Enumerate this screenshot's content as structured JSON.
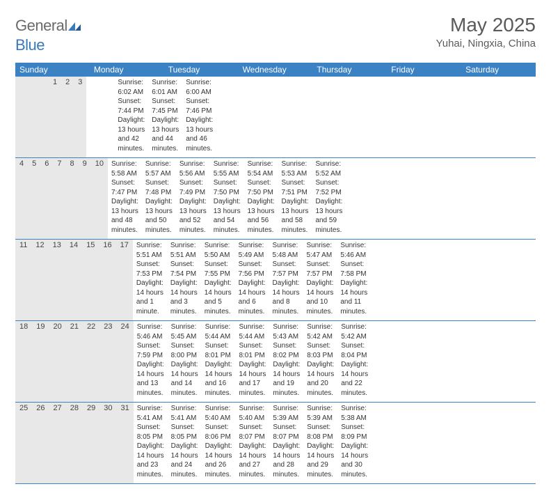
{
  "logo": {
    "general": "General",
    "blue": "Blue"
  },
  "title": "May 2025",
  "location": "Yuhai, Ningxia, China",
  "colors": {
    "header_bg": "#3b82c4",
    "header_text": "#ffffff",
    "daynum_bg": "#e8e8e8",
    "border": "#3b82c4",
    "body_text": "#333333",
    "logo_gray": "#6a6a6a",
    "logo_blue": "#3a7ab8"
  },
  "day_labels": [
    "Sunday",
    "Monday",
    "Tuesday",
    "Wednesday",
    "Thursday",
    "Friday",
    "Saturday"
  ],
  "weeks": [
    [
      {
        "n": "",
        "sr": "",
        "ss": "",
        "dl": ""
      },
      {
        "n": "",
        "sr": "",
        "ss": "",
        "dl": ""
      },
      {
        "n": "",
        "sr": "",
        "ss": "",
        "dl": ""
      },
      {
        "n": "",
        "sr": "",
        "ss": "",
        "dl": ""
      },
      {
        "n": "1",
        "sr": "Sunrise: 6:02 AM",
        "ss": "Sunset: 7:44 PM",
        "dl": "Daylight: 13 hours and 42 minutes."
      },
      {
        "n": "2",
        "sr": "Sunrise: 6:01 AM",
        "ss": "Sunset: 7:45 PM",
        "dl": "Daylight: 13 hours and 44 minutes."
      },
      {
        "n": "3",
        "sr": "Sunrise: 6:00 AM",
        "ss": "Sunset: 7:46 PM",
        "dl": "Daylight: 13 hours and 46 minutes."
      }
    ],
    [
      {
        "n": "4",
        "sr": "Sunrise: 5:58 AM",
        "ss": "Sunset: 7:47 PM",
        "dl": "Daylight: 13 hours and 48 minutes."
      },
      {
        "n": "5",
        "sr": "Sunrise: 5:57 AM",
        "ss": "Sunset: 7:48 PM",
        "dl": "Daylight: 13 hours and 50 minutes."
      },
      {
        "n": "6",
        "sr": "Sunrise: 5:56 AM",
        "ss": "Sunset: 7:49 PM",
        "dl": "Daylight: 13 hours and 52 minutes."
      },
      {
        "n": "7",
        "sr": "Sunrise: 5:55 AM",
        "ss": "Sunset: 7:50 PM",
        "dl": "Daylight: 13 hours and 54 minutes."
      },
      {
        "n": "8",
        "sr": "Sunrise: 5:54 AM",
        "ss": "Sunset: 7:50 PM",
        "dl": "Daylight: 13 hours and 56 minutes."
      },
      {
        "n": "9",
        "sr": "Sunrise: 5:53 AM",
        "ss": "Sunset: 7:51 PM",
        "dl": "Daylight: 13 hours and 58 minutes."
      },
      {
        "n": "10",
        "sr": "Sunrise: 5:52 AM",
        "ss": "Sunset: 7:52 PM",
        "dl": "Daylight: 13 hours and 59 minutes."
      }
    ],
    [
      {
        "n": "11",
        "sr": "Sunrise: 5:51 AM",
        "ss": "Sunset: 7:53 PM",
        "dl": "Daylight: 14 hours and 1 minute."
      },
      {
        "n": "12",
        "sr": "Sunrise: 5:51 AM",
        "ss": "Sunset: 7:54 PM",
        "dl": "Daylight: 14 hours and 3 minutes."
      },
      {
        "n": "13",
        "sr": "Sunrise: 5:50 AM",
        "ss": "Sunset: 7:55 PM",
        "dl": "Daylight: 14 hours and 5 minutes."
      },
      {
        "n": "14",
        "sr": "Sunrise: 5:49 AM",
        "ss": "Sunset: 7:56 PM",
        "dl": "Daylight: 14 hours and 6 minutes."
      },
      {
        "n": "15",
        "sr": "Sunrise: 5:48 AM",
        "ss": "Sunset: 7:57 PM",
        "dl": "Daylight: 14 hours and 8 minutes."
      },
      {
        "n": "16",
        "sr": "Sunrise: 5:47 AM",
        "ss": "Sunset: 7:57 PM",
        "dl": "Daylight: 14 hours and 10 minutes."
      },
      {
        "n": "17",
        "sr": "Sunrise: 5:46 AM",
        "ss": "Sunset: 7:58 PM",
        "dl": "Daylight: 14 hours and 11 minutes."
      }
    ],
    [
      {
        "n": "18",
        "sr": "Sunrise: 5:46 AM",
        "ss": "Sunset: 7:59 PM",
        "dl": "Daylight: 14 hours and 13 minutes."
      },
      {
        "n": "19",
        "sr": "Sunrise: 5:45 AM",
        "ss": "Sunset: 8:00 PM",
        "dl": "Daylight: 14 hours and 14 minutes."
      },
      {
        "n": "20",
        "sr": "Sunrise: 5:44 AM",
        "ss": "Sunset: 8:01 PM",
        "dl": "Daylight: 14 hours and 16 minutes."
      },
      {
        "n": "21",
        "sr": "Sunrise: 5:44 AM",
        "ss": "Sunset: 8:01 PM",
        "dl": "Daylight: 14 hours and 17 minutes."
      },
      {
        "n": "22",
        "sr": "Sunrise: 5:43 AM",
        "ss": "Sunset: 8:02 PM",
        "dl": "Daylight: 14 hours and 19 minutes."
      },
      {
        "n": "23",
        "sr": "Sunrise: 5:42 AM",
        "ss": "Sunset: 8:03 PM",
        "dl": "Daylight: 14 hours and 20 minutes."
      },
      {
        "n": "24",
        "sr": "Sunrise: 5:42 AM",
        "ss": "Sunset: 8:04 PM",
        "dl": "Daylight: 14 hours and 22 minutes."
      }
    ],
    [
      {
        "n": "25",
        "sr": "Sunrise: 5:41 AM",
        "ss": "Sunset: 8:05 PM",
        "dl": "Daylight: 14 hours and 23 minutes."
      },
      {
        "n": "26",
        "sr": "Sunrise: 5:41 AM",
        "ss": "Sunset: 8:05 PM",
        "dl": "Daylight: 14 hours and 24 minutes."
      },
      {
        "n": "27",
        "sr": "Sunrise: 5:40 AM",
        "ss": "Sunset: 8:06 PM",
        "dl": "Daylight: 14 hours and 26 minutes."
      },
      {
        "n": "28",
        "sr": "Sunrise: 5:40 AM",
        "ss": "Sunset: 8:07 PM",
        "dl": "Daylight: 14 hours and 27 minutes."
      },
      {
        "n": "29",
        "sr": "Sunrise: 5:39 AM",
        "ss": "Sunset: 8:07 PM",
        "dl": "Daylight: 14 hours and 28 minutes."
      },
      {
        "n": "30",
        "sr": "Sunrise: 5:39 AM",
        "ss": "Sunset: 8:08 PM",
        "dl": "Daylight: 14 hours and 29 minutes."
      },
      {
        "n": "31",
        "sr": "Sunrise: 5:38 AM",
        "ss": "Sunset: 8:09 PM",
        "dl": "Daylight: 14 hours and 30 minutes."
      }
    ]
  ]
}
